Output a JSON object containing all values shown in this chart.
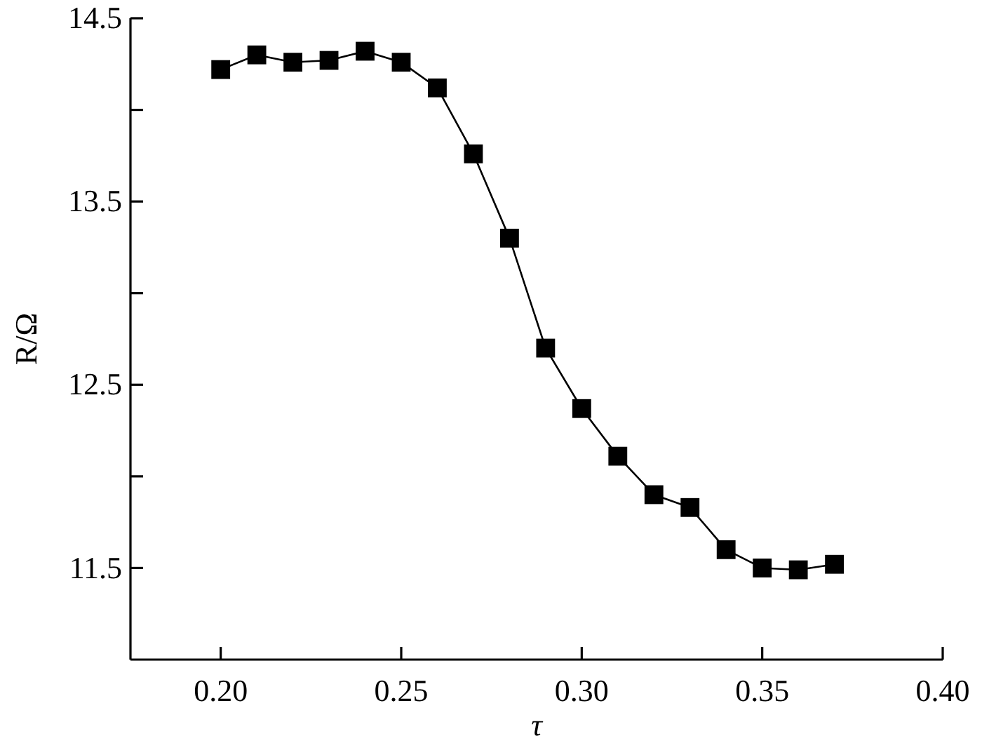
{
  "chart_data": {
    "type": "line",
    "xlabel": "τ",
    "ylabel": "R/Ω",
    "x": [
      0.2,
      0.21,
      0.22,
      0.23,
      0.24,
      0.25,
      0.26,
      0.27,
      0.28,
      0.29,
      0.3,
      0.31,
      0.32,
      0.33,
      0.34,
      0.35,
      0.36,
      0.37
    ],
    "series": [
      {
        "color": "#000000",
        "values": [
          14.22,
          14.3,
          14.26,
          14.27,
          14.32,
          14.26,
          14.12,
          13.76,
          13.3,
          12.7,
          12.37,
          12.11,
          11.9,
          11.83,
          11.6,
          11.5,
          11.49,
          11.52
        ]
      }
    ],
    "xlim": [
      0.175,
      0.4
    ],
    "xticks": [
      {
        "value": 0.2,
        "label": "0.20"
      },
      {
        "value": 0.25,
        "label": "0.25"
      },
      {
        "value": 0.3,
        "label": "0.30"
      },
      {
        "value": 0.35,
        "label": "0.35"
      },
      {
        "value": 0.4,
        "label": "0.40"
      }
    ],
    "ylim": [
      11.0,
      14.5
    ],
    "yticks": [
      11.5,
      {
        "value": 12.0,
        "label": null
      },
      12.5,
      {
        "value": 13.0,
        "label": null
      },
      13.5,
      {
        "value": 14.0,
        "label": null
      },
      14.5
    ],
    "grid": false,
    "marker": "square",
    "line_style": "solid"
  }
}
